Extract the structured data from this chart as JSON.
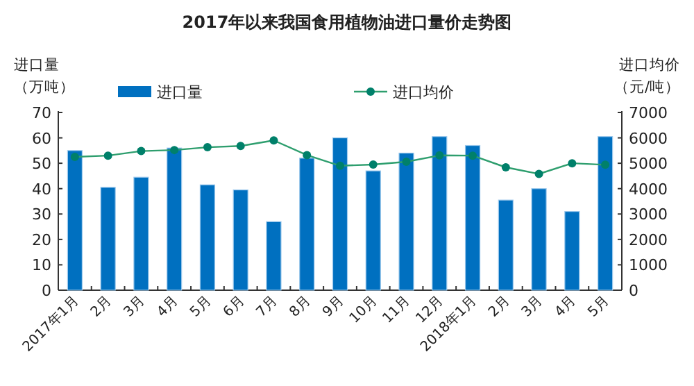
{
  "chart_data": {
    "type": "bar",
    "title": "2017年以来我国食用植物油进口量价走势图",
    "ylabel": "进口量（万吨）",
    "y2label": "进口均价（元/吨）",
    "categories": [
      "2017年1月",
      "2月",
      "3月",
      "4月",
      "5月",
      "6月",
      "7月",
      "8月",
      "9月",
      "10月",
      "11月",
      "12月",
      "2018年1月",
      "2月",
      "3月",
      "4月",
      "5月"
    ],
    "series": [
      {
        "name": "进口量",
        "color": "#0070c0",
        "values": [
          55,
          40.5,
          44.5,
          56,
          41.5,
          39.5,
          27,
          52,
          60,
          47,
          54,
          60.5,
          57,
          35.5,
          40,
          31,
          60.5
        ]
      },
      {
        "name": "进口均价",
        "type": "line",
        "axis": "y2",
        "color": "#2e9e6e",
        "marker": "circle",
        "values": [
          5250,
          5300,
          5480,
          5520,
          5630,
          5680,
          5900,
          5320,
          4900,
          4950,
          5060,
          5310,
          5300,
          4840,
          4580,
          5000,
          4940
        ]
      }
    ],
    "ylim": [
      0,
      70
    ],
    "yticks": [
      0,
      10,
      20,
      30,
      40,
      50,
      60,
      70
    ],
    "y2lim": [
      0,
      7000
    ],
    "y2ticks": [
      0,
      1000,
      2000,
      3000,
      4000,
      5000,
      6000,
      7000
    ],
    "grid": false,
    "legend": "top"
  }
}
